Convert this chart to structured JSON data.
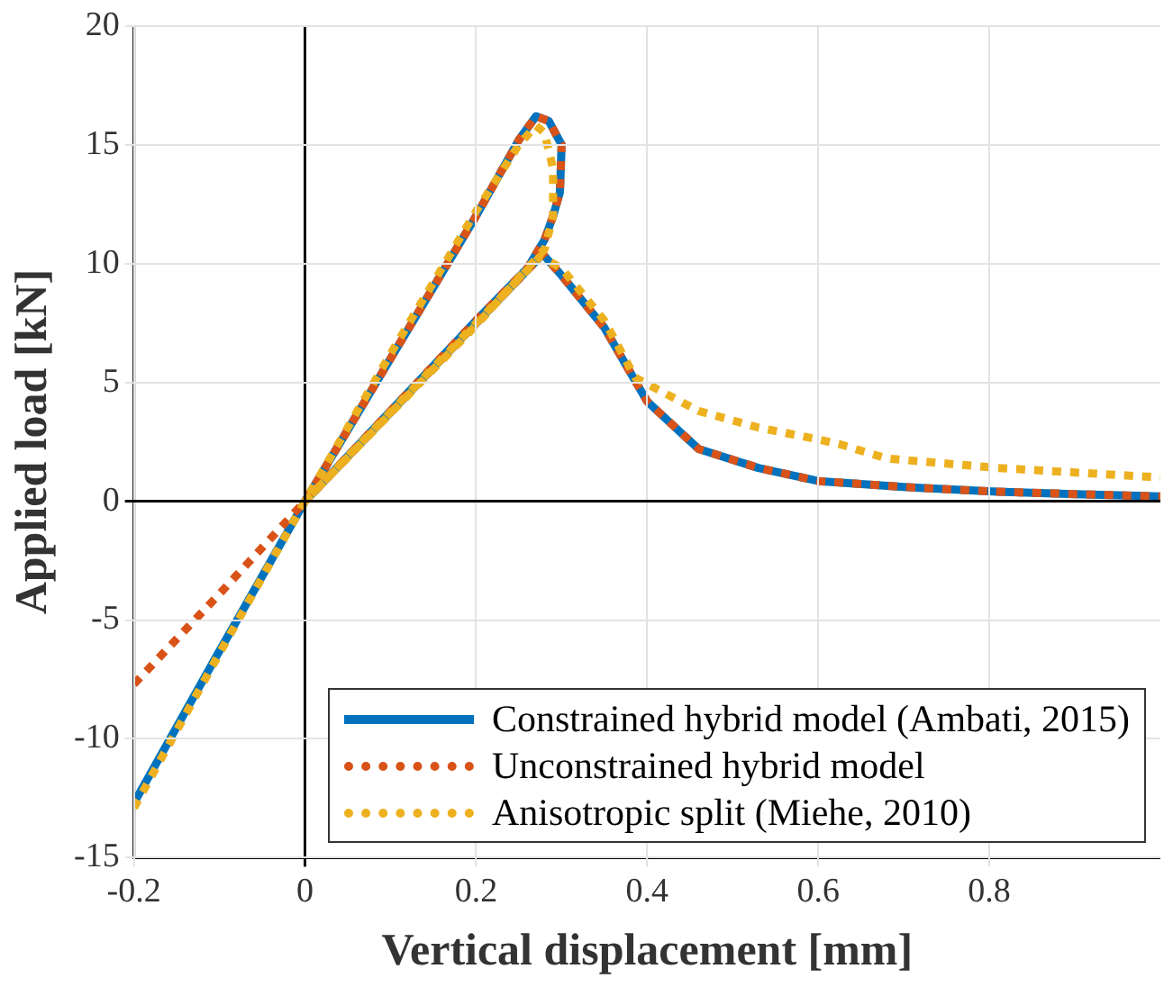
{
  "chart_data": {
    "type": "line",
    "xlabel": "Vertical displacement [mm]",
    "ylabel": "Applied load [kN]",
    "xlim": [
      -0.2,
      1
    ],
    "xticks": [
      -0.2,
      0,
      0.2,
      0.4,
      0.6,
      0.8
    ],
    "ylim": [
      -15,
      20
    ],
    "yticks": [
      -15,
      -10,
      -5,
      0,
      5,
      10,
      15,
      20
    ],
    "grid": true,
    "legend": "bottom right",
    "marker": "none",
    "series": [
      {
        "name": "Constrained hybrid model (Ambati, 2015)",
        "color": "#0072bd",
        "line_style": "solid",
        "x": [
          -0.2,
          -0.1,
          0,
          0.05,
          0.1,
          0.15,
          0.2,
          0.25,
          0.27,
          0.285,
          0.3,
          0.298,
          0.29,
          0.28,
          0.26,
          0.2,
          0.1,
          0,
          0.278,
          0.3,
          0.35,
          0.4,
          0.46,
          0.53,
          0.6,
          0.7,
          0.81,
          0.9,
          1.0
        ],
        "values": [
          -12.7,
          -6.3,
          0,
          3,
          6,
          9,
          12,
          15.2,
          16.2,
          16,
          15,
          13,
          12,
          11,
          9.8,
          7.6,
          3.8,
          0,
          10.4,
          9.5,
          7.3,
          4.2,
          2.2,
          1.4,
          0.85,
          0.6,
          0.4,
          0.3,
          0.2
        ]
      },
      {
        "name": "Unconstrained hybrid model",
        "color": "#d95319",
        "line_style": "dotted",
        "x": [
          -0.2,
          -0.1,
          0,
          0.05,
          0.1,
          0.15,
          0.2,
          0.25,
          0.27,
          0.285,
          0.3,
          0.298,
          0.29,
          0.28,
          0.26,
          0.2,
          0.1,
          0,
          0.278,
          0.3,
          0.35,
          0.4,
          0.46,
          0.53,
          0.6,
          0.7,
          0.81,
          0.9,
          1.0
        ],
        "values": [
          -7.7,
          -3.9,
          0,
          3,
          6,
          9,
          12,
          15.2,
          16.2,
          16,
          15,
          13,
          12,
          11,
          9.8,
          7.6,
          3.8,
          0,
          10.4,
          9.5,
          7.3,
          4.2,
          2.2,
          1.4,
          0.85,
          0.6,
          0.4,
          0.3,
          0.2
        ]
      },
      {
        "name": "Anisotropic split (Miehe, 2010)",
        "color": "#edb120",
        "line_style": "dotted",
        "x": [
          -0.2,
          -0.1,
          0,
          0.1,
          0.2,
          0.25,
          0.27,
          0.28,
          0.29,
          0.29,
          0.28,
          0.2,
          0.1,
          0,
          0.275,
          0.3,
          0.35,
          0.386,
          0.46,
          0.53,
          0.6,
          0.625,
          0.68,
          0.81,
          1.0
        ],
        "values": [
          -12.9,
          -6.4,
          0,
          6.2,
          12.2,
          15,
          15.8,
          15.5,
          14,
          12,
          10.6,
          7.4,
          3.7,
          0,
          10.3,
          9.8,
          7.6,
          5.2,
          3.8,
          3.1,
          2.6,
          2.4,
          1.8,
          1.4,
          1.0
        ]
      }
    ]
  }
}
